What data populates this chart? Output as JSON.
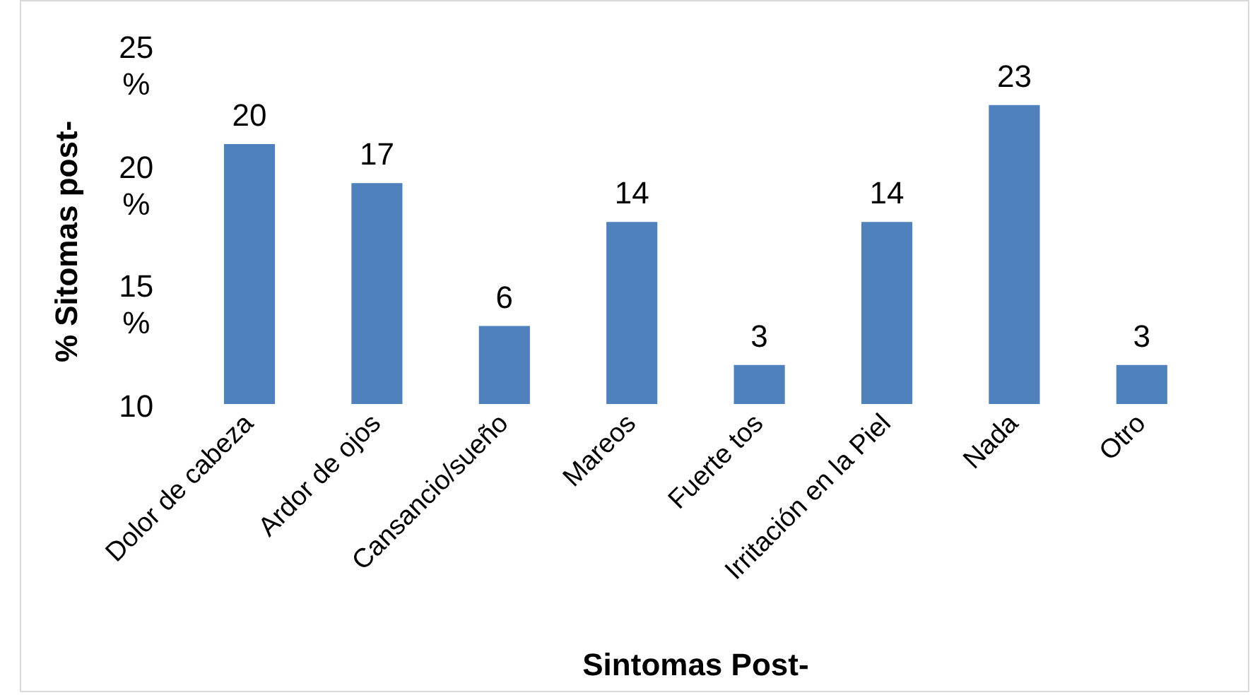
{
  "chart_data": {
    "type": "bar",
    "xlabel": "Sintomas Post-",
    "ylabel": "% Sitomas post-",
    "categories": [
      "Dolor de cabeza",
      "Ardor de ojos",
      "Cansancio/sueño",
      "Mareos",
      "Fuerte tos",
      "Irritación en la Piel",
      "Nada",
      "Otro"
    ],
    "values": [
      20,
      17,
      6,
      14,
      3,
      14,
      23,
      3
    ],
    "color": "#4f81bd",
    "annotations": [
      "25 %",
      "20 %",
      "15 %",
      "10"
    ],
    "grid": false,
    "legend": false,
    "data_labels": true
  }
}
